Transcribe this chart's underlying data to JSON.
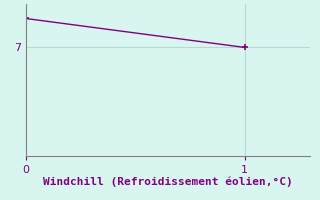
{
  "x_data": [
    0,
    1
  ],
  "y_data": [
    7.8,
    7.0
  ],
  "line_color": "#800080",
  "marker": "+",
  "marker_size": 5,
  "marker_color": "#800080",
  "background_color": "#d8f5f0",
  "grid_color": "#b8d8d4",
  "axis_color": "#808080",
  "xlabel": "Windchill (Refroidissement éolien,°C)",
  "xlabel_color": "#800080",
  "xlabel_fontsize": 8,
  "tick_color": "#800080",
  "tick_fontsize": 8,
  "xlim": [
    0,
    1.3
  ],
  "ylim": [
    4.0,
    8.2
  ],
  "yticks": [
    7
  ],
  "xticks": [
    0,
    1
  ]
}
